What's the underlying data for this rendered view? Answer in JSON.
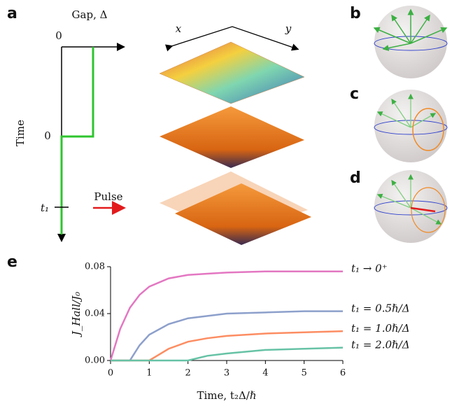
{
  "panel_labels": [
    "a",
    "b",
    "c",
    "d",
    "e"
  ],
  "panel_a": {
    "gap_label": "Gap, Δ",
    "gap_zero": "0",
    "time_zero": "0",
    "t1_label": "t₁",
    "time_label": "Time",
    "pulse_label": "Pulse",
    "x_label": "x",
    "y_label": "y"
  },
  "chart_data": {
    "type": "line",
    "xlabel": "Time, t₂Δ/ℏ",
    "ylabel": "J_Hall/J₀",
    "x": [
      0,
      0.25,
      0.5,
      0.75,
      1,
      1.5,
      2,
      2.5,
      3,
      4,
      5,
      6
    ],
    "series": [
      {
        "name": "t₁ → 0⁺",
        "color": "#e377c2",
        "values": [
          0,
          0.027,
          0.045,
          0.056,
          0.063,
          0.07,
          0.073,
          0.074,
          0.075,
          0.076,
          0.076,
          0.076
        ]
      },
      {
        "name": "t₁ = 0.5ℏ/Δ",
        "color": "#8da0cb",
        "values": [
          0,
          0,
          0,
          0.013,
          0.022,
          0.031,
          0.036,
          0.038,
          0.04,
          0.041,
          0.042,
          0.042
        ]
      },
      {
        "name": "t₁ = 1.0ℏ/Δ",
        "color": "#fc8d62",
        "values": [
          0,
          0,
          0,
          0,
          0,
          0.01,
          0.016,
          0.019,
          0.021,
          0.023,
          0.024,
          0.025
        ]
      },
      {
        "name": "t₁ = 2.0ℏ/Δ",
        "color": "#66c2a5",
        "values": [
          0,
          0,
          0,
          0,
          0,
          0,
          0,
          0.004,
          0.006,
          0.009,
          0.01,
          0.011
        ]
      }
    ],
    "xlim": [
      0,
      6
    ],
    "xticks": [
      0,
      1,
      2,
      3,
      4,
      5,
      6
    ],
    "ylim": [
      0,
      0.08
    ],
    "yticks": [
      {
        "value": 0,
        "label": "0.00"
      },
      {
        "value": 0.04,
        "label": "0.04"
      },
      {
        "value": 0.08,
        "label": "0.08"
      }
    ]
  }
}
